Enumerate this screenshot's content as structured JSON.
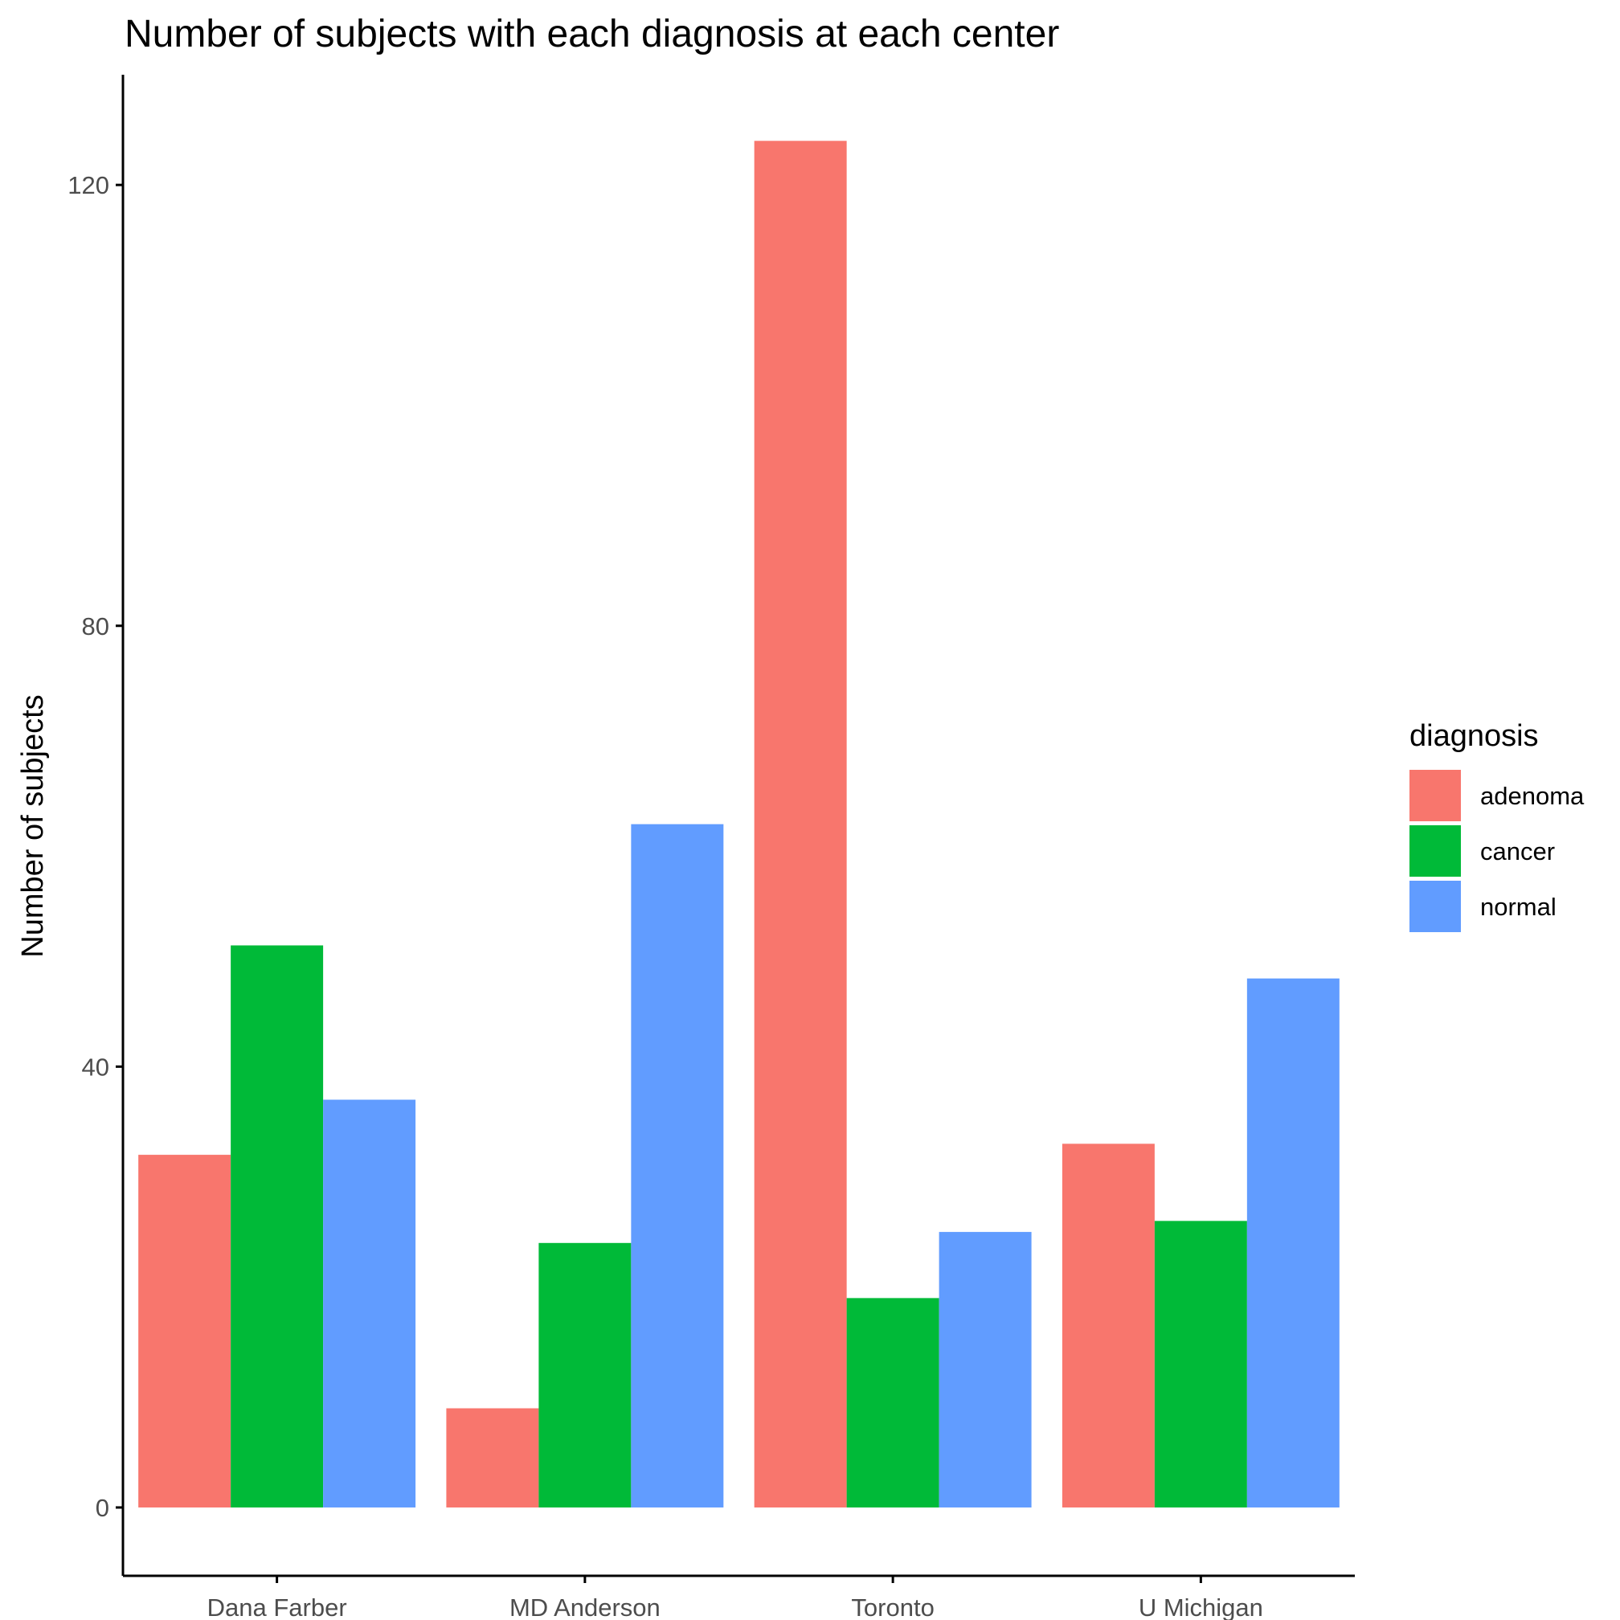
{
  "chart_data": {
    "type": "bar",
    "title": "Number of subjects with each diagnosis at each center",
    "xlabel": "",
    "ylabel": "Number of subjects",
    "ylim": [
      -6.2,
      130
    ],
    "yticks": [
      0,
      40,
      80,
      120
    ],
    "categories": [
      "Dana Farber",
      "MD Anderson",
      "Toronto",
      "U Michigan"
    ],
    "legend": {
      "title": "diagnosis",
      "position": "right"
    },
    "grid": false,
    "series": [
      {
        "name": "adenoma",
        "color": "#F8766D",
        "values": [
          32,
          9,
          124,
          33
        ]
      },
      {
        "name": "cancer",
        "color": "#00BA38",
        "values": [
          51,
          24,
          19,
          26
        ]
      },
      {
        "name": "normal",
        "color": "#619CFF",
        "values": [
          37,
          62,
          25,
          48
        ]
      }
    ]
  }
}
